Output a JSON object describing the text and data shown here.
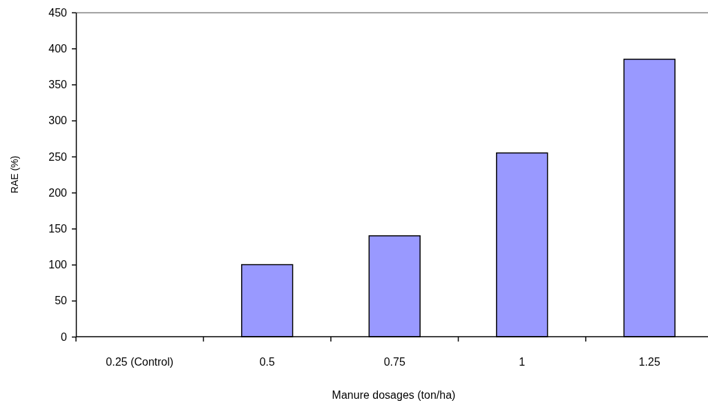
{
  "chart_data": {
    "type": "bar",
    "xlabel": "Manure dosages (ton/ha)",
    "ylabel": "RAE (%)",
    "categories": [
      "0.25 (Control)",
      "0.5",
      "0.75",
      "1",
      "1.25"
    ],
    "values": [
      0,
      100,
      140,
      255,
      385
    ],
    "color": "#9999ff",
    "ylim": [
      0,
      450
    ],
    "yticks": [
      0,
      50,
      100,
      150,
      200,
      250,
      300,
      350,
      400,
      450
    ],
    "grid": false
  }
}
